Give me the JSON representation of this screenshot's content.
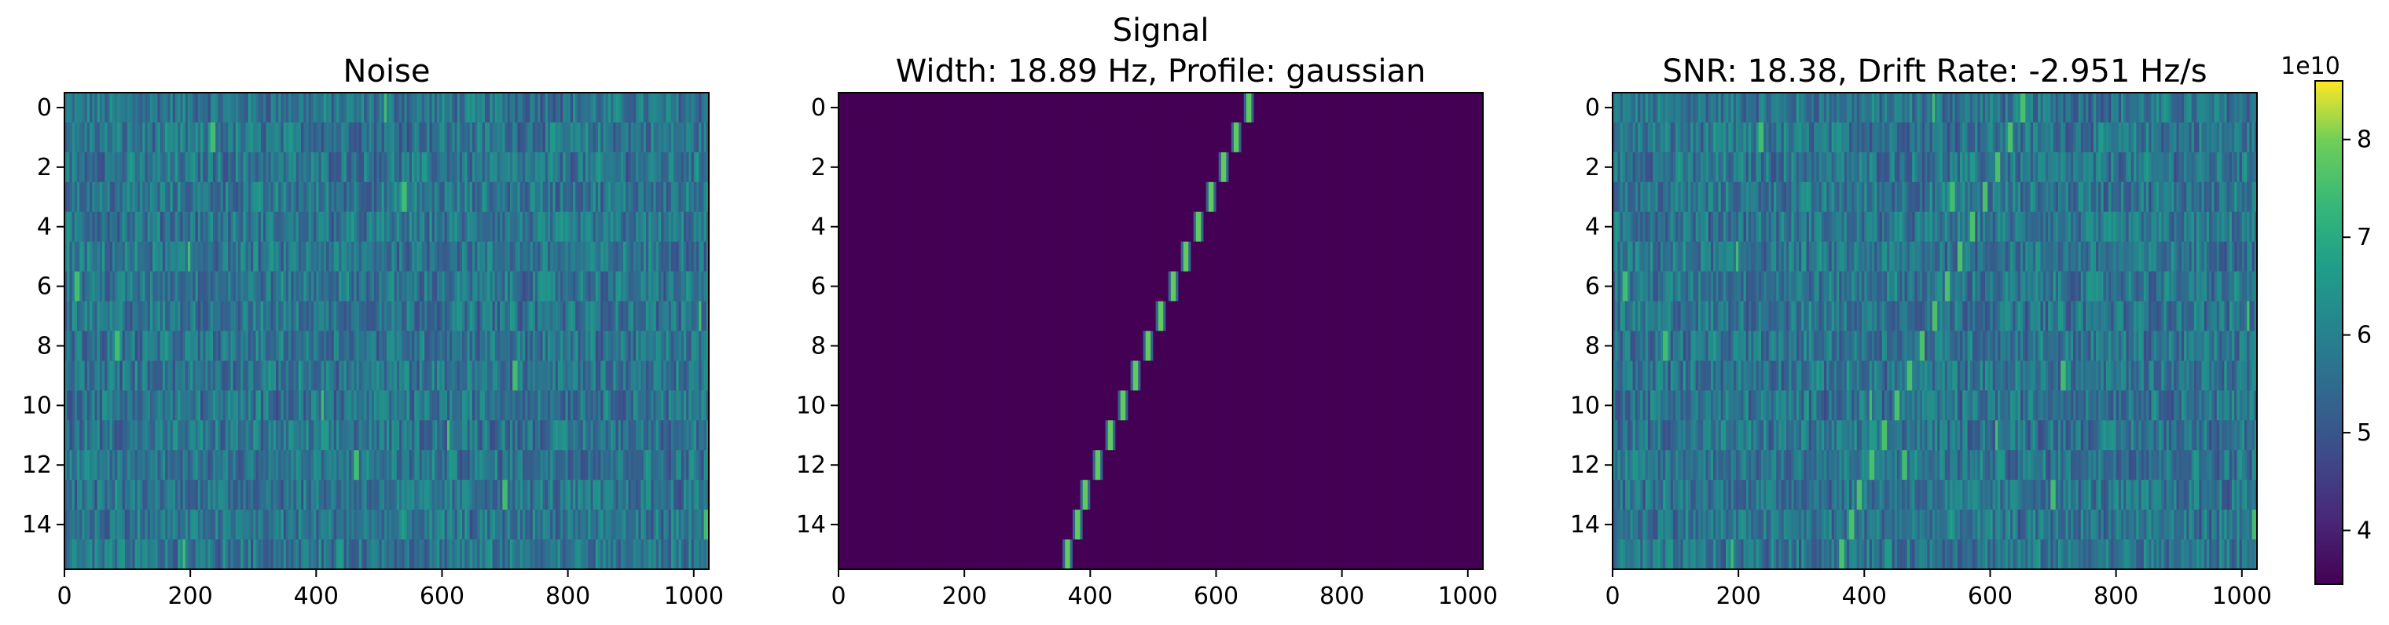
{
  "chart_data": [
    {
      "type": "heatmap",
      "title": "Noise",
      "xticks": [
        "0",
        "200",
        "400",
        "600",
        "800",
        "1000"
      ],
      "yticks": [
        "0",
        "2",
        "4",
        "6",
        "8",
        "10",
        "12",
        "14"
      ],
      "xlim": [
        0,
        1024
      ],
      "ylim": [
        15.5,
        -0.5
      ],
      "rows": 16,
      "columns": 1024,
      "description_values": "random noise intensity around 5e10 with sparse bright vertical streaks",
      "bright_spots": [
        {
          "row": 0,
          "x": 510
        },
        {
          "row": 1,
          "x": 235
        },
        {
          "row": 3,
          "x": 540
        },
        {
          "row": 5,
          "x": 198
        },
        {
          "row": 6,
          "x": 20
        },
        {
          "row": 7,
          "x": 1010
        },
        {
          "row": 8,
          "x": 85
        },
        {
          "row": 9,
          "x": 715
        },
        {
          "row": 10,
          "x": 410
        },
        {
          "row": 11,
          "x": 610
        },
        {
          "row": 12,
          "x": 465
        },
        {
          "row": 13,
          "x": 700
        },
        {
          "row": 14,
          "x": 1020
        },
        {
          "row": 15,
          "x": 190
        }
      ]
    },
    {
      "type": "heatmap",
      "title": "Signal\nWidth: 18.89 Hz, Profile: gaussian",
      "title_lines": [
        "Signal",
        "Width: 18.89 Hz, Profile: gaussian"
      ],
      "xticks": [
        "0",
        "200",
        "400",
        "600",
        "800",
        "1000"
      ],
      "yticks": [
        "0",
        "2",
        "4",
        "6",
        "8",
        "10",
        "12",
        "14"
      ],
      "xlim": [
        0,
        1024
      ],
      "ylim": [
        15.5,
        -0.5
      ],
      "rows": 16,
      "columns": 1024,
      "signal_track": [
        {
          "row": 0,
          "x": 652
        },
        {
          "row": 1,
          "x": 632
        },
        {
          "row": 2,
          "x": 612
        },
        {
          "row": 3,
          "x": 592
        },
        {
          "row": 4,
          "x": 572
        },
        {
          "row": 5,
          "x": 552
        },
        {
          "row": 6,
          "x": 532
        },
        {
          "row": 7,
          "x": 512
        },
        {
          "row": 8,
          "x": 492
        },
        {
          "row": 9,
          "x": 472
        },
        {
          "row": 10,
          "x": 452
        },
        {
          "row": 11,
          "x": 432
        },
        {
          "row": 12,
          "x": 412
        },
        {
          "row": 13,
          "x": 392
        },
        {
          "row": 14,
          "x": 380
        },
        {
          "row": 15,
          "x": 364
        }
      ]
    },
    {
      "type": "heatmap",
      "title": "SNR: 18.38, Drift Rate: -2.951 Hz/s",
      "xticks": [
        "0",
        "200",
        "400",
        "600",
        "800",
        "1000"
      ],
      "yticks": [
        "0",
        "2",
        "4",
        "6",
        "8",
        "10",
        "12",
        "14"
      ],
      "xlim": [
        0,
        1024
      ],
      "ylim": [
        15.5,
        -0.5
      ],
      "rows": 16,
      "columns": 1024,
      "description_values": "noise plus drifting signal track",
      "colorbar": {
        "ticks": [
          "4",
          "5",
          "6",
          "7",
          "8"
        ],
        "tick_values": [
          4,
          5,
          6,
          7,
          8
        ],
        "range": [
          3.45,
          8.6
        ],
        "multiplier": "1e10",
        "colormap": "viridis"
      }
    }
  ]
}
